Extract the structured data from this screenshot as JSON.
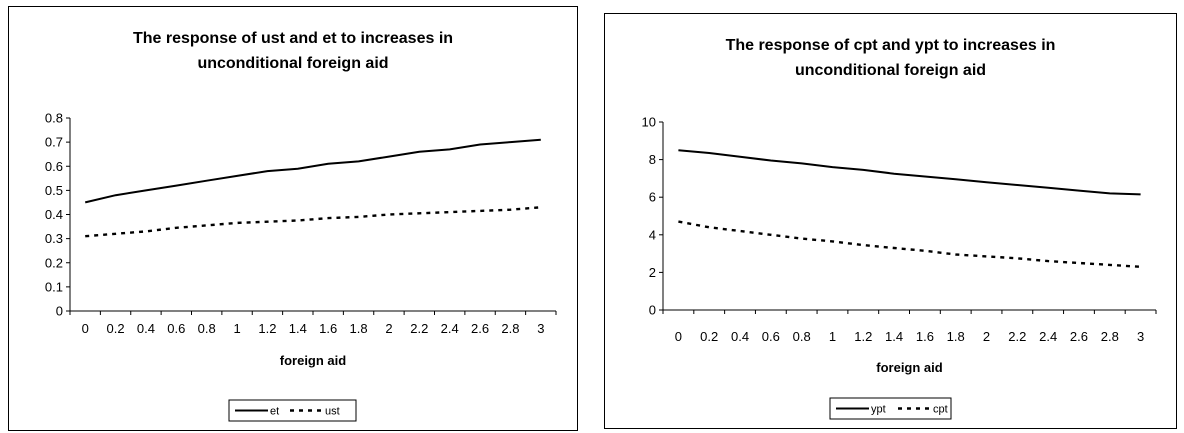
{
  "chart_data": [
    {
      "type": "line",
      "title": [
        "The response of ust and et to increases in",
        "unconditional foreign aid"
      ],
      "xlabel": "foreign aid",
      "ylabel": "",
      "x": [
        0,
        0.2,
        0.4,
        0.6,
        0.8,
        1,
        1.2,
        1.4,
        1.6,
        1.8,
        2,
        2.2,
        2.4,
        2.6,
        2.8,
        3
      ],
      "x_tick_labels": [
        "0",
        "0.2",
        "0.4",
        "0.6",
        "0.8",
        "1",
        "1.2",
        "1.4",
        "1.6",
        "1.8",
        "2",
        "2.2",
        "2.4",
        "2.6",
        "2.8",
        "3"
      ],
      "ylim": [
        0,
        0.8
      ],
      "y_ticks": [
        0,
        0.1,
        0.2,
        0.3,
        0.4,
        0.5,
        0.6,
        0.7,
        0.8
      ],
      "y_tick_labels": [
        "0",
        "0.1",
        "0.2",
        "0.3",
        "0.4",
        "0.5",
        "0.6",
        "0.7",
        "0.8"
      ],
      "grid": false,
      "legend_position": "bottom",
      "series": [
        {
          "name": "et",
          "style": "solid",
          "color": "#000000",
          "values": [
            0.45,
            0.48,
            0.5,
            0.52,
            0.54,
            0.56,
            0.58,
            0.59,
            0.61,
            0.62,
            0.64,
            0.66,
            0.67,
            0.69,
            0.7,
            0.71
          ]
        },
        {
          "name": "ust",
          "style": "dashed",
          "color": "#000000",
          "values": [
            0.31,
            0.32,
            0.33,
            0.345,
            0.355,
            0.365,
            0.37,
            0.375,
            0.385,
            0.39,
            0.4,
            0.405,
            0.41,
            0.415,
            0.42,
            0.43
          ]
        }
      ]
    },
    {
      "type": "line",
      "title": [
        "The response of cpt and ypt to increases in",
        "unconditional foreign aid"
      ],
      "xlabel": "foreign aid",
      "ylabel": "",
      "x": [
        0,
        0.2,
        0.4,
        0.6,
        0.8,
        1,
        1.2,
        1.4,
        1.6,
        1.8,
        2,
        2.2,
        2.4,
        2.6,
        2.8,
        3
      ],
      "x_tick_labels": [
        "0",
        "0.2",
        "0.4",
        "0.6",
        "0.8",
        "1",
        "1.2",
        "1.4",
        "1.6",
        "1.8",
        "2",
        "2.2",
        "2.4",
        "2.6",
        "2.8",
        "3"
      ],
      "ylim": [
        0,
        10
      ],
      "y_ticks": [
        0,
        2,
        4,
        6,
        8,
        10
      ],
      "y_tick_labels": [
        "0",
        "2",
        "4",
        "6",
        "8",
        "10"
      ],
      "grid": false,
      "legend_position": "bottom",
      "series": [
        {
          "name": "ypt",
          "style": "solid",
          "color": "#000000",
          "values": [
            8.5,
            8.35,
            8.15,
            7.95,
            7.8,
            7.6,
            7.45,
            7.25,
            7.1,
            6.95,
            6.8,
            6.65,
            6.5,
            6.35,
            6.2,
            6.15
          ]
        },
        {
          "name": "cpt",
          "style": "dashed",
          "color": "#000000",
          "values": [
            4.7,
            4.4,
            4.2,
            4.0,
            3.8,
            3.65,
            3.45,
            3.3,
            3.15,
            2.95,
            2.85,
            2.75,
            2.6,
            2.5,
            2.4,
            2.3
          ]
        }
      ]
    }
  ]
}
